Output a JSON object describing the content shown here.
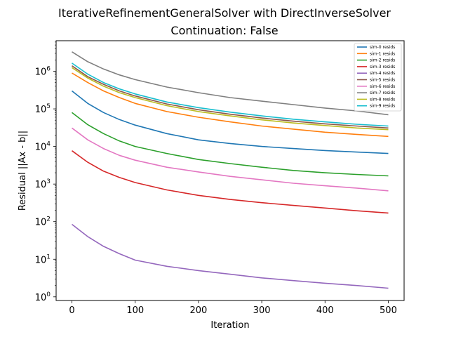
{
  "chart_data": {
    "type": "line",
    "title": "IterativeRefinementGeneralSolver with DirectInverseSolver",
    "subtitle": "Continuation: False",
    "xlabel": "Iteration",
    "ylabel": "Residual ||Ax - b||",
    "yscale": "log",
    "xlim": [
      -25,
      525
    ],
    "ylim": [
      0.8,
      6500000
    ],
    "x_ticks": [
      0,
      100,
      200,
      300,
      400,
      500
    ],
    "y_ticks": [
      {
        "value": 1,
        "base": "10",
        "exp": "0"
      },
      {
        "value": 10,
        "base": "10",
        "exp": "1"
      },
      {
        "value": 100,
        "base": "10",
        "exp": "2"
      },
      {
        "value": 1000,
        "base": "10",
        "exp": "3"
      },
      {
        "value": 10000,
        "base": "10",
        "exp": "4"
      },
      {
        "value": 100000,
        "base": "10",
        "exp": "5"
      },
      {
        "value": 1000000,
        "base": "10",
        "exp": "6"
      }
    ],
    "grid": false,
    "legend_position": "top-right",
    "x": [
      0,
      25,
      50,
      75,
      100,
      150,
      200,
      250,
      300,
      350,
      400,
      450,
      500
    ],
    "series": [
      {
        "name": "sim-0 resids",
        "color": "#1f77b4",
        "values": [
          300000,
          140000,
          80000,
          52000,
          37000,
          22000,
          15000,
          12000,
          10000,
          8800,
          7800,
          7100,
          6500
        ]
      },
      {
        "name": "sim-1 resids",
        "color": "#ff7f0e",
        "values": [
          900000,
          500000,
          300000,
          200000,
          140000,
          85000,
          60000,
          45000,
          35000,
          29000,
          24000,
          21000,
          18500
        ]
      },
      {
        "name": "sim-2 resids",
        "color": "#2ca02c",
        "values": [
          80000,
          38000,
          22000,
          14000,
          10000,
          6500,
          4500,
          3500,
          2800,
          2300,
          2000,
          1800,
          1650
        ]
      },
      {
        "name": "sim-3 resids",
        "color": "#d62728",
        "values": [
          7700,
          3800,
          2200,
          1500,
          1100,
          700,
          500,
          390,
          320,
          270,
          230,
          195,
          170
        ]
      },
      {
        "name": "sim-4 resids",
        "color": "#9467bd",
        "values": [
          85,
          40,
          22,
          14,
          9.5,
          6.5,
          5,
          4,
          3.2,
          2.7,
          2.3,
          2,
          1.7
        ]
      },
      {
        "name": "sim-5 resids",
        "color": "#8c564b",
        "values": [
          1400000,
          720000,
          450000,
          300000,
          220000,
          135000,
          95000,
          72000,
          57000,
          47000,
          40000,
          35000,
          31000
        ]
      },
      {
        "name": "sim-6 resids",
        "color": "#e377c2",
        "values": [
          31000,
          15000,
          8800,
          5800,
          4300,
          2800,
          2100,
          1600,
          1300,
          1050,
          900,
          780,
          660
        ]
      },
      {
        "name": "sim-7 resids",
        "color": "#7f7f7f",
        "values": [
          3300000,
          1800000,
          1150000,
          800000,
          600000,
          380000,
          270000,
          200000,
          160000,
          130000,
          105000,
          88000,
          70000
        ]
      },
      {
        "name": "sim-8 resids",
        "color": "#bcbd22",
        "values": [
          1250000,
          660000,
          400000,
          270000,
          200000,
          122000,
          85000,
          65000,
          51000,
          42000,
          36000,
          31000,
          28000
        ]
      },
      {
        "name": "sim-9 resids",
        "color": "#17becf",
        "values": [
          1650000,
          840000,
          500000,
          340000,
          250000,
          152000,
          108000,
          82000,
          65000,
          53000,
          45000,
          39000,
          35000
        ]
      }
    ]
  }
}
